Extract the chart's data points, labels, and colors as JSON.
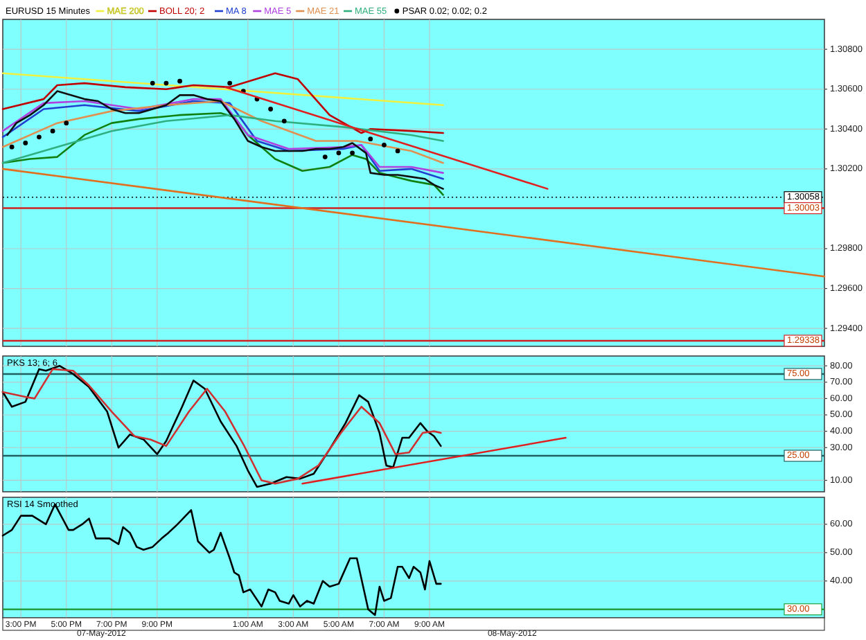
{
  "chart_data": [
    {
      "type": "line",
      "title": "EURUSD 15 Minutes",
      "legend": "top left",
      "grid": true,
      "tick_labels": "y",
      "xlim": [
        "2012-05-07T14:12",
        "2012-05-09T02:24"
      ],
      "xticks": [
        {
          "value": "2012-05-07T15:00",
          "label": null
        },
        {
          "value": "2012-05-07T17:00",
          "label": null
        },
        {
          "value": "2012-05-07T19:00",
          "label": null
        },
        {
          "value": "2012-05-07T21:00",
          "label": null
        },
        {
          "value": "2012-05-08T01:00",
          "label": null
        },
        {
          "value": "2012-05-08T03:00",
          "label": null
        },
        {
          "value": "2012-05-08T05:00",
          "label": null
        },
        {
          "value": "2012-05-08T07:00",
          "label": null
        },
        {
          "value": "2012-05-08T09:00",
          "label": null
        }
      ],
      "ylim": [
        1.2931,
        1.3095
      ],
      "yticks": [
        {
          "value": 1.294,
          "label": "1.29400"
        },
        {
          "value": 1.296,
          "label": "1.29600"
        },
        {
          "value": 1.298,
          "label": "1.29800"
        },
        {
          "value": 1.302,
          "label": "1.30200"
        },
        {
          "value": 1.304,
          "label": "1.30400"
        },
        {
          "value": 1.306,
          "label": "1.30600"
        },
        {
          "value": 1.308,
          "label": "1.30800"
        }
      ],
      "ref_lines": [
        {
          "axis": "y",
          "value": 1.30058,
          "label": "1.30058",
          "color": "#000000",
          "line_style": "dotted"
        },
        {
          "axis": "y",
          "value": 1.30003,
          "label": "1.30003",
          "color": "#d02020",
          "line_style": "solid"
        },
        {
          "axis": "y",
          "value": 1.29338,
          "label": "1.29338",
          "color": "#d02020",
          "line_style": "solid"
        }
      ],
      "series": [
        {
          "name": "MAE 200",
          "color": "#f0f040",
          "x": [
            "2012-05-07T14:12",
            "2012-05-08T09:36"
          ],
          "values": [
            1.3068,
            1.3052
          ]
        },
        {
          "name": "BOLL 20; 2",
          "color": "#c00000",
          "x": [
            "2012-05-07T14:12",
            "2012-05-07T16:00",
            "2012-05-07T16:36",
            "2012-05-07T17:48",
            "2012-05-07T19:36",
            "2012-05-07T21:24",
            "2012-05-07T22:36",
            "2012-05-08T00:12",
            "2012-05-08T02:12",
            "2012-05-08T03:12",
            "2012-05-08T04:36",
            "2012-05-08T06:00",
            "2012-05-08T06:24",
            "2012-05-08T08:12",
            "2012-05-08T09:36"
          ],
          "values": [
            1.305,
            1.3055,
            1.3062,
            1.3063,
            1.3061,
            1.306,
            1.3062,
            1.3061,
            1.3068,
            1.3065,
            1.3047,
            1.3038,
            1.304,
            1.3039,
            1.3038
          ]
        },
        {
          "color": "#108010",
          "x": [
            "2012-05-07T14:12",
            "2012-05-07T15:24",
            "2012-05-07T16:36",
            "2012-05-07T17:48",
            "2012-05-07T19:00",
            "2012-05-07T20:12",
            "2012-05-07T22:00",
            "2012-05-07T23:48",
            "2012-05-08T00:24",
            "2012-05-08T01:00",
            "2012-05-08T02:12",
            "2012-05-08T03:24",
            "2012-05-08T04:36",
            "2012-05-08T05:36",
            "2012-05-08T06:12",
            "2012-05-08T06:48",
            "2012-05-08T08:12",
            "2012-05-08T09:12",
            "2012-05-08T09:36"
          ],
          "values": [
            1.3023,
            1.3025,
            1.3026,
            1.3037,
            1.3043,
            1.3045,
            1.3047,
            1.3048,
            1.3046,
            1.3037,
            1.3025,
            1.3019,
            1.3021,
            1.3027,
            1.3025,
            1.3018,
            1.3014,
            1.3012,
            1.3007
          ]
        },
        {
          "name": "MA 8",
          "color": "#2040d0",
          "x": [
            "2012-05-07T14:12",
            "2012-05-07T16:00",
            "2012-05-07T17:48",
            "2012-05-07T20:12",
            "2012-05-07T22:36",
            "2012-05-08T00:12",
            "2012-05-08T01:24",
            "2012-05-08T02:48",
            "2012-05-08T05:12",
            "2012-05-08T06:00",
            "2012-05-08T06:48",
            "2012-05-08T08:12",
            "2012-05-08T09:36"
          ],
          "values": [
            1.3036,
            1.305,
            1.3052,
            1.3049,
            1.3054,
            1.3053,
            1.3034,
            1.3029,
            1.303,
            1.3032,
            1.3019,
            1.302,
            1.3015
          ]
        },
        {
          "name": "MAE 5",
          "color": "#b040e0",
          "x": [
            "2012-05-07T14:12",
            "2012-05-07T16:00",
            "2012-05-07T17:48",
            "2012-05-07T20:12",
            "2012-05-07T22:36",
            "2012-05-07T23:48",
            "2012-05-08T01:00",
            "2012-05-08T02:48",
            "2012-05-08T05:12",
            "2012-05-08T06:00",
            "2012-05-08T06:48",
            "2012-05-08T08:12",
            "2012-05-08T09:36"
          ],
          "values": [
            1.3039,
            1.3053,
            1.3054,
            1.305,
            1.3055,
            1.3055,
            1.3037,
            1.303,
            1.3031,
            1.3032,
            1.3021,
            1.3021,
            1.3018
          ]
        },
        {
          "name": "MAE 21",
          "color": "#e09050",
          "x": [
            "2012-05-07T14:12",
            "2012-05-07T16:36",
            "2012-05-07T19:00",
            "2012-05-07T21:24",
            "2012-05-07T23:48",
            "2012-05-08T01:36",
            "2012-05-08T04:00",
            "2012-05-08T05:48",
            "2012-05-08T08:12",
            "2012-05-08T09:36"
          ],
          "values": [
            1.3031,
            1.3043,
            1.3049,
            1.3052,
            1.3054,
            1.3044,
            1.3034,
            1.3034,
            1.3029,
            1.3023
          ]
        },
        {
          "name": "MAE 55",
          "color": "#30b080",
          "x": [
            "2012-05-07T14:12",
            "2012-05-07T16:36",
            "2012-05-07T19:00",
            "2012-05-07T21:24",
            "2012-05-08T00:12",
            "2012-05-08T02:12",
            "2012-05-08T05:12",
            "2012-05-08T08:12",
            "2012-05-08T09:36"
          ],
          "values": [
            1.3023,
            1.3031,
            1.3039,
            1.3044,
            1.3047,
            1.3044,
            1.3041,
            1.3037,
            1.3034
          ]
        },
        {
          "name": "PSAR 0.02; 0.02; 0.2",
          "type": "scatter",
          "marker": "circle",
          "color": "#000000",
          "x": [
            "2012-05-07T14:36",
            "2012-05-07T15:12",
            "2012-05-07T15:48",
            "2012-05-07T16:24",
            "2012-05-07T17:00",
            "2012-05-07T20:48",
            "2012-05-07T21:24",
            "2012-05-07T22:00",
            "2012-05-08T00:12",
            "2012-05-08T00:48",
            "2012-05-08T01:24",
            "2012-05-08T02:00",
            "2012-05-08T02:36",
            "2012-05-08T04:24",
            "2012-05-08T05:00",
            "2012-05-08T05:36",
            "2012-05-08T06:24",
            "2012-05-08T07:00",
            "2012-05-08T07:36"
          ],
          "values": [
            1.3031,
            1.3033,
            1.3036,
            1.3039,
            1.3043,
            1.3063,
            1.3063,
            1.3064,
            1.3063,
            1.3059,
            1.3055,
            1.305,
            1.3044,
            1.3026,
            1.3028,
            1.3028,
            1.3035,
            1.3032,
            1.3029
          ]
        },
        {
          "color": "#101010",
          "x": [
            "2012-05-07T14:24",
            "2012-05-07T14:48",
            "2012-05-07T15:24",
            "2012-05-07T16:00",
            "2012-05-07T16:36",
            "2012-05-07T17:12",
            "2012-05-07T17:48",
            "2012-05-07T18:24",
            "2012-05-07T19:00",
            "2012-05-07T19:36",
            "2012-05-07T20:12",
            "2012-05-07T20:48",
            "2012-05-07T21:24",
            "2012-05-07T22:00",
            "2012-05-07T22:36",
            "2012-05-07T23:12",
            "2012-05-07T23:48",
            "2012-05-08T00:24",
            "2012-05-08T01:00",
            "2012-05-08T01:36",
            "2012-05-08T02:12",
            "2012-05-08T02:48",
            "2012-05-08T03:24",
            "2012-05-08T04:00",
            "2012-05-08T04:36",
            "2012-05-08T05:12",
            "2012-05-08T05:36",
            "2012-05-08T06:12",
            "2012-05-08T06:24",
            "2012-05-08T07:00",
            "2012-05-08T07:36",
            "2012-05-08T08:12",
            "2012-05-08T08:48",
            "2012-05-08T09:12",
            "2012-05-08T09:36"
          ],
          "values": [
            1.3037,
            1.3043,
            1.3047,
            1.3052,
            1.3059,
            1.3057,
            1.3055,
            1.3054,
            1.305,
            1.3048,
            1.3048,
            1.305,
            1.3052,
            1.3057,
            1.3057,
            1.3055,
            1.3054,
            1.3045,
            1.3034,
            1.3031,
            1.3029,
            1.3029,
            1.3029,
            1.303,
            1.303,
            1.3031,
            1.3033,
            1.3028,
            1.3018,
            1.3017,
            1.3017,
            1.3016,
            1.3015,
            1.3012,
            1.301
          ]
        },
        {
          "color": "#e02020",
          "x": [
            "2012-05-08T00:00",
            "2012-05-08T14:12"
          ],
          "values": [
            1.3061,
            1.301
          ]
        },
        {
          "color": "#e07020",
          "x": [
            "2012-05-07T14:12",
            "2012-05-09T02:24"
          ],
          "values": [
            1.302,
            1.2966
          ]
        }
      ]
    },
    {
      "type": "line",
      "title": "PKS 13; 6; 6",
      "grid": true,
      "tick_labels": "y",
      "xlim": [
        "2012-05-07T14:12",
        "2012-05-09T02:24"
      ],
      "xticks": [
        {
          "value": "2012-05-07T15:00",
          "label": null
        },
        {
          "value": "2012-05-07T17:00",
          "label": null
        },
        {
          "value": "2012-05-07T19:00",
          "label": null
        },
        {
          "value": "2012-05-07T21:00",
          "label": null
        },
        {
          "value": "2012-05-08T01:00",
          "label": null
        },
        {
          "value": "2012-05-08T03:00",
          "label": null
        },
        {
          "value": "2012-05-08T05:00",
          "label": null
        },
        {
          "value": "2012-05-08T07:00",
          "label": null
        },
        {
          "value": "2012-05-08T09:00",
          "label": null
        }
      ],
      "ylim": [
        3,
        86
      ],
      "yticks": [
        {
          "value": 10,
          "label": "10.00"
        },
        {
          "value": 30,
          "label": "30.00"
        },
        {
          "value": 40,
          "label": "40.00"
        },
        {
          "value": 50,
          "label": "50.00"
        },
        {
          "value": 60,
          "label": "60.00"
        },
        {
          "value": 70,
          "label": "70.00"
        },
        {
          "value": 80,
          "label": "80.00"
        }
      ],
      "ref_lines": [
        {
          "axis": "y",
          "value": 75,
          "label": "75.00",
          "color": "#206060",
          "line_style": "solid"
        },
        {
          "axis": "y",
          "value": 25,
          "label": "25.00",
          "color": "#206060",
          "line_style": "solid"
        }
      ],
      "series": [
        {
          "color": "#000000",
          "x": [
            "2012-05-07T14:12",
            "2012-05-07T14:36",
            "2012-05-07T15:12",
            "2012-05-07T15:48",
            "2012-05-07T16:06",
            "2012-05-07T16:42",
            "2012-05-07T17:18",
            "2012-05-07T18:00",
            "2012-05-07T18:48",
            "2012-05-07T19:18",
            "2012-05-07T19:48",
            "2012-05-07T20:24",
            "2012-05-07T21:00",
            "2012-05-07T21:24",
            "2012-05-07T22:06",
            "2012-05-07T22:36",
            "2012-05-07T23:06",
            "2012-05-07T23:48",
            "2012-05-08T00:30",
            "2012-05-08T01:00",
            "2012-05-08T01:24",
            "2012-05-08T02:00",
            "2012-05-08T02:42",
            "2012-05-08T03:18",
            "2012-05-08T03:54",
            "2012-05-08T04:36",
            "2012-05-08T05:18",
            "2012-05-08T05:54",
            "2012-05-08T06:18",
            "2012-05-08T06:48",
            "2012-05-08T07:06",
            "2012-05-08T07:24",
            "2012-05-08T07:48",
            "2012-05-08T08:06",
            "2012-05-08T08:36",
            "2012-05-08T08:54",
            "2012-05-08T09:12",
            "2012-05-08T09:30"
          ],
          "values": [
            64,
            55,
            58,
            78,
            77,
            80,
            75,
            67,
            52,
            30,
            38,
            35,
            26,
            34,
            55,
            71,
            66,
            46,
            31,
            16,
            6,
            8,
            12,
            11,
            14,
            29,
            45,
            62,
            58,
            39,
            19,
            18,
            36,
            36,
            45,
            40,
            37,
            31
          ]
        },
        {
          "color": "#d03030",
          "x": [
            "2012-05-07T14:12",
            "2012-05-07T15:12",
            "2012-05-07T15:36",
            "2012-05-07T16:24",
            "2012-05-07T17:18",
            "2012-05-07T18:00",
            "2012-05-07T19:00",
            "2012-05-07T20:00",
            "2012-05-07T20:42",
            "2012-05-07T21:24",
            "2012-05-07T22:24",
            "2012-05-07T23:12",
            "2012-05-08T00:00",
            "2012-05-08T00:48",
            "2012-05-08T01:36",
            "2012-05-08T02:12",
            "2012-05-08T03:12",
            "2012-05-08T04:06",
            "2012-05-08T05:06",
            "2012-05-08T06:00",
            "2012-05-08T06:48",
            "2012-05-08T07:30",
            "2012-05-08T08:06",
            "2012-05-08T08:42",
            "2012-05-08T09:12",
            "2012-05-08T09:30"
          ],
          "values": [
            64,
            61,
            60,
            78,
            77,
            68,
            52,
            37,
            35,
            31,
            52,
            66,
            52,
            32,
            10,
            8,
            11,
            19,
            39,
            55,
            45,
            26,
            27,
            39,
            40,
            39
          ]
        },
        {
          "color": "#e02020",
          "x": [
            "2012-05-08T03:24",
            "2012-05-08T15:00"
          ],
          "values": [
            8,
            36
          ]
        }
      ]
    },
    {
      "type": "line",
      "title": "RSI 14 Smoothed",
      "grid": true,
      "xlim": [
        "2012-05-07T14:12",
        "2012-05-09T02:24"
      ],
      "xticks": [
        {
          "value": "2012-05-07T15:00",
          "label": "3:00 PM"
        },
        {
          "value": "2012-05-07T17:00",
          "label": "5:00 PM"
        },
        {
          "value": "2012-05-07T19:00",
          "label": "7:00 PM"
        },
        {
          "value": "2012-05-07T21:00",
          "label": "9:00 PM"
        },
        {
          "value": "2012-05-08T01:00",
          "label": "1:00 AM"
        },
        {
          "value": "2012-05-08T03:00",
          "label": "3:00 AM"
        },
        {
          "value": "2012-05-08T05:00",
          "label": "5:00 AM"
        },
        {
          "value": "2012-05-08T07:00",
          "label": "7:00 AM"
        },
        {
          "value": "2012-05-08T09:00",
          "label": "9:00 AM"
        }
      ],
      "ylim": [
        27,
        69.5
      ],
      "yticks": [
        {
          "value": 40,
          "label": "40.00"
        },
        {
          "value": 50,
          "label": "50.00"
        },
        {
          "value": 60,
          "label": "60.00"
        }
      ],
      "ref_lines": [
        {
          "axis": "y",
          "value": 30,
          "label": "30.00",
          "color": "#20a040",
          "line_style": "solid"
        }
      ],
      "annotations": [
        "07-May-2012",
        "08-May-2012"
      ],
      "series": [
        {
          "color": "#000000",
          "x": [
            "2012-05-07T14:12",
            "2012-05-07T14:36",
            "2012-05-07T15:00",
            "2012-05-07T15:30",
            "2012-05-07T16:06",
            "2012-05-07T16:30",
            "2012-05-07T17:06",
            "2012-05-07T17:18",
            "2012-05-07T17:42",
            "2012-05-07T18:00",
            "2012-05-07T18:18",
            "2012-05-07T18:54",
            "2012-05-07T19:18",
            "2012-05-07T19:30",
            "2012-05-07T19:48",
            "2012-05-07T20:06",
            "2012-05-07T20:24",
            "2012-05-07T20:48",
            "2012-05-07T21:12",
            "2012-05-07T21:30",
            "2012-05-07T21:54",
            "2012-05-07T22:30",
            "2012-05-07T22:48",
            "2012-05-07T23:18",
            "2012-05-07T23:30",
            "2012-05-07T23:48",
            "2012-05-08T00:12",
            "2012-05-08T00:24",
            "2012-05-08T00:36",
            "2012-05-08T00:48",
            "2012-05-08T01:06",
            "2012-05-08T01:36",
            "2012-05-08T01:54",
            "2012-05-08T02:12",
            "2012-05-08T02:24",
            "2012-05-08T02:48",
            "2012-05-08T03:00",
            "2012-05-08T03:18",
            "2012-05-08T03:36",
            "2012-05-08T03:54",
            "2012-05-08T04:18",
            "2012-05-08T04:36",
            "2012-05-08T05:00",
            "2012-05-08T05:30",
            "2012-05-08T05:48",
            "2012-05-08T06:18",
            "2012-05-08T06:36",
            "2012-05-08T06:48",
            "2012-05-08T07:00",
            "2012-05-08T07:18",
            "2012-05-08T07:36",
            "2012-05-08T07:48",
            "2012-05-08T08:06",
            "2012-05-08T08:18",
            "2012-05-08T08:36",
            "2012-05-08T08:48",
            "2012-05-08T09:00",
            "2012-05-08T09:18",
            "2012-05-08T09:30"
          ],
          "values": [
            56,
            58,
            63,
            63,
            60,
            67,
            58,
            58,
            60,
            62,
            55,
            55,
            53,
            59,
            57,
            52,
            51,
            52,
            55,
            57,
            60,
            65,
            54,
            50,
            51,
            57,
            48,
            43,
            42,
            36,
            37,
            31,
            37,
            36,
            33,
            32,
            35,
            31,
            33,
            32,
            40,
            38,
            39,
            48,
            48,
            30,
            28,
            38,
            33,
            34,
            45,
            45,
            41,
            45,
            43,
            37,
            47,
            39,
            39
          ]
        }
      ]
    }
  ]
}
